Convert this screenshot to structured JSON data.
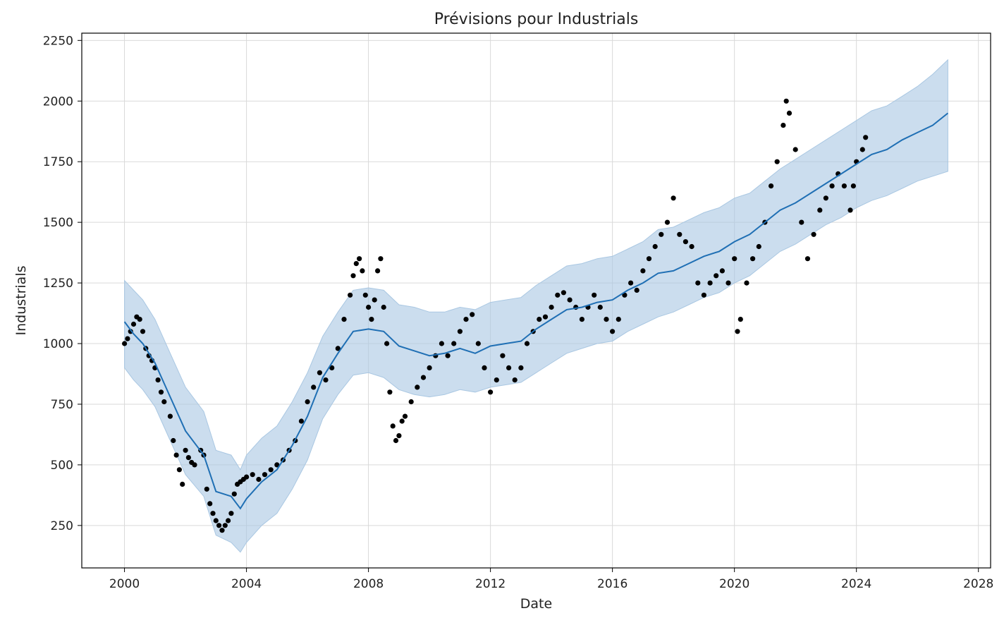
{
  "chart_data": {
    "type": "scatter",
    "title": "Prévisions pour Industrials",
    "xlabel": "Date",
    "ylabel": "Industrials",
    "xlim": [
      1998.6,
      2028.4
    ],
    "ylim": [
      75,
      2280
    ],
    "grid": true,
    "x_ticks": [
      2000,
      2004,
      2008,
      2012,
      2016,
      2020,
      2024,
      2028
    ],
    "x_tick_labels": [
      "2000",
      "2004",
      "2008",
      "2012",
      "2016",
      "2020",
      "2024",
      "2028"
    ],
    "y_ticks": [
      250,
      500,
      750,
      1000,
      1250,
      1500,
      1750,
      2000,
      2250
    ],
    "y_tick_labels": [
      "250",
      "500",
      "750",
      "1000",
      "1250",
      "1500",
      "1750",
      "2000",
      "2250"
    ],
    "colors": {
      "observed": "#000000",
      "forecast_line": "#1f6fb4",
      "interval_fill": "#a9c7e2",
      "grid": "#d9d9d9"
    },
    "series": [
      {
        "kind": "forecast",
        "x": [
          2000.0,
          2000.3,
          2000.6,
          2001.0,
          2001.5,
          2002.0,
          2002.6,
          2003.0,
          2003.5,
          2003.8,
          2004.0,
          2004.5,
          2005.0,
          2005.5,
          2006.0,
          2006.5,
          2007.0,
          2007.5,
          2008.0,
          2008.5,
          2009.0,
          2009.5,
          2010.0,
          2010.5,
          2011.0,
          2011.5,
          2012.0,
          2012.5,
          2013.0,
          2013.5,
          2014.0,
          2014.5,
          2015.0,
          2015.5,
          2016.0,
          2016.5,
          2017.0,
          2017.5,
          2018.0,
          2018.5,
          2019.0,
          2019.5,
          2020.0,
          2020.5,
          2021.0,
          2021.5,
          2022.0,
          2022.5,
          2023.0,
          2023.5,
          2024.0,
          2024.5,
          2025.0,
          2025.5,
          2026.0,
          2026.5,
          2027.0
        ],
        "yhat": [
          1090,
          1040,
          1000,
          920,
          780,
          640,
          540,
          390,
          370,
          320,
          360,
          430,
          480,
          580,
          700,
          860,
          960,
          1050,
          1060,
          1050,
          990,
          970,
          950,
          960,
          980,
          960,
          990,
          1000,
          1010,
          1060,
          1100,
          1140,
          1150,
          1170,
          1180,
          1220,
          1250,
          1290,
          1300,
          1330,
          1360,
          1380,
          1420,
          1450,
          1500,
          1550,
          1580,
          1620,
          1660,
          1700,
          1740,
          1780,
          1800,
          1840,
          1870,
          1900,
          1950
        ],
        "yhat_lower": [
          900,
          850,
          810,
          740,
          600,
          460,
          370,
          210,
          180,
          140,
          180,
          250,
          300,
          400,
          520,
          690,
          790,
          870,
          880,
          860,
          810,
          790,
          780,
          790,
          810,
          800,
          820,
          830,
          840,
          880,
          920,
          960,
          980,
          1000,
          1010,
          1050,
          1080,
          1110,
          1130,
          1160,
          1190,
          1210,
          1250,
          1280,
          1330,
          1380,
          1410,
          1450,
          1490,
          1520,
          1560,
          1590,
          1610,
          1640,
          1670,
          1690,
          1710
        ],
        "yhat_upper": [
          1260,
          1220,
          1180,
          1100,
          960,
          820,
          720,
          560,
          540,
          480,
          540,
          610,
          660,
          760,
          880,
          1030,
          1130,
          1220,
          1230,
          1220,
          1160,
          1150,
          1130,
          1130,
          1150,
          1140,
          1170,
          1180,
          1190,
          1240,
          1280,
          1320,
          1330,
          1350,
          1360,
          1390,
          1420,
          1470,
          1480,
          1510,
          1540,
          1560,
          1600,
          1620,
          1670,
          1720,
          1760,
          1800,
          1840,
          1880,
          1920,
          1960,
          1980,
          2020,
          2060,
          2110,
          2170
        ]
      },
      {
        "kind": "observed",
        "x": [
          2000.0,
          2000.1,
          2000.2,
          2000.3,
          2000.4,
          2000.5,
          2000.6,
          2000.7,
          2000.8,
          2000.9,
          2001.0,
          2001.1,
          2001.2,
          2001.3,
          2001.5,
          2001.6,
          2001.7,
          2001.8,
          2001.9,
          2002.0,
          2002.1,
          2002.2,
          2002.3,
          2002.5,
          2002.6,
          2002.7,
          2002.8,
          2002.9,
          2003.0,
          2003.1,
          2003.2,
          2003.3,
          2003.4,
          2003.5,
          2003.6,
          2003.7,
          2003.8,
          2003.9,
          2004.0,
          2004.2,
          2004.4,
          2004.6,
          2004.8,
          2005.0,
          2005.2,
          2005.4,
          2005.6,
          2005.8,
          2006.0,
          2006.2,
          2006.4,
          2006.6,
          2006.8,
          2007.0,
          2007.2,
          2007.4,
          2007.5,
          2007.6,
          2007.7,
          2007.8,
          2007.9,
          2008.0,
          2008.1,
          2008.2,
          2008.3,
          2008.4,
          2008.5,
          2008.6,
          2008.7,
          2008.8,
          2008.9,
          2009.0,
          2009.1,
          2009.2,
          2009.4,
          2009.6,
          2009.8,
          2010.0,
          2010.2,
          2010.4,
          2010.6,
          2010.8,
          2011.0,
          2011.2,
          2011.4,
          2011.6,
          2011.8,
          2012.0,
          2012.2,
          2012.4,
          2012.6,
          2012.8,
          2013.0,
          2013.2,
          2013.4,
          2013.6,
          2013.8,
          2014.0,
          2014.2,
          2014.4,
          2014.6,
          2014.8,
          2015.0,
          2015.2,
          2015.4,
          2015.6,
          2015.8,
          2016.0,
          2016.2,
          2016.4,
          2016.6,
          2016.8,
          2017.0,
          2017.2,
          2017.4,
          2017.6,
          2017.8,
          2018.0,
          2018.2,
          2018.4,
          2018.6,
          2018.8,
          2019.0,
          2019.2,
          2019.4,
          2019.6,
          2019.8,
          2020.0,
          2020.1,
          2020.2,
          2020.4,
          2020.6,
          2020.8,
          2021.0,
          2021.2,
          2021.4,
          2021.6,
          2021.7,
          2021.8,
          2022.0,
          2022.2,
          2022.4,
          2022.6,
          2022.8,
          2023.0,
          2023.2,
          2023.4,
          2023.6,
          2023.8,
          2023.9,
          2024.0,
          2024.2,
          2024.3
        ],
        "y": [
          1000,
          1020,
          1050,
          1080,
          1110,
          1100,
          1050,
          980,
          950,
          930,
          900,
          850,
          800,
          760,
          700,
          600,
          540,
          480,
          420,
          560,
          530,
          510,
          500,
          560,
          540,
          400,
          340,
          300,
          270,
          250,
          230,
          250,
          270,
          300,
          380,
          420,
          430,
          440,
          450,
          460,
          440,
          460,
          480,
          500,
          520,
          560,
          600,
          680,
          760,
          820,
          880,
          850,
          900,
          980,
          1100,
          1200,
          1280,
          1330,
          1350,
          1300,
          1200,
          1150,
          1100,
          1180,
          1300,
          1350,
          1150,
          1000,
          800,
          660,
          600,
          620,
          680,
          700,
          760,
          820,
          860,
          900,
          950,
          1000,
          950,
          1000,
          1050,
          1100,
          1120,
          1000,
          900,
          800,
          850,
          950,
          900,
          850,
          900,
          1000,
          1050,
          1100,
          1110,
          1150,
          1200,
          1210,
          1180,
          1150,
          1100,
          1150,
          1200,
          1150,
          1100,
          1050,
          1100,
          1200,
          1250,
          1220,
          1300,
          1350,
          1400,
          1450,
          1500,
          1600,
          1450,
          1420,
          1400,
          1250,
          1200,
          1250,
          1280,
          1300,
          1250,
          1350,
          1050,
          1100,
          1250,
          1350,
          1400,
          1500,
          1650,
          1750,
          1900,
          2000,
          1950,
          1800,
          1500,
          1350,
          1450,
          1550,
          1600,
          1650,
          1700,
          1650,
          1550,
          1650,
          1750,
          1800,
          1850
        ]
      }
    ]
  }
}
